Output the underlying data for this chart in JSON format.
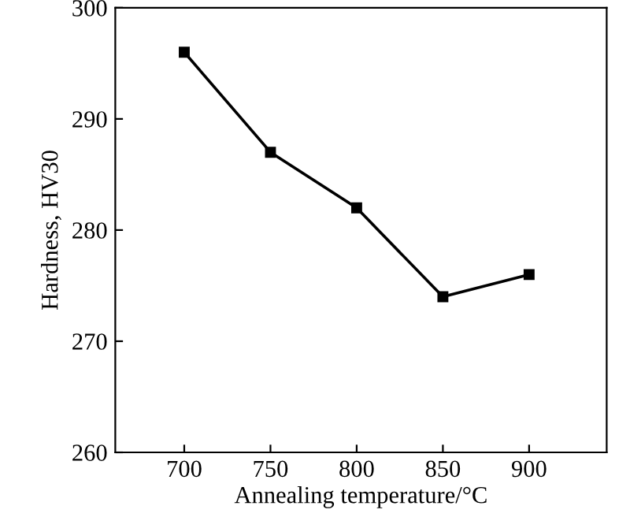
{
  "chart_data": {
    "type": "line",
    "xlabel": "Annealing temperature/°C",
    "ylabel": "Hardness, HV30",
    "x": [
      700,
      750,
      800,
      850,
      900
    ],
    "series": [
      {
        "color": "#000000",
        "values": [
          296,
          287,
          282,
          274,
          276
        ]
      }
    ],
    "xlim": [
      660,
      945
    ],
    "xticks": [
      700,
      750,
      800,
      850,
      900
    ],
    "ylim": [
      260,
      300
    ],
    "yticks": [
      260,
      270,
      280,
      290,
      300
    ],
    "marker": "square",
    "line_style": "solid",
    "grid": false,
    "legend": false
  }
}
